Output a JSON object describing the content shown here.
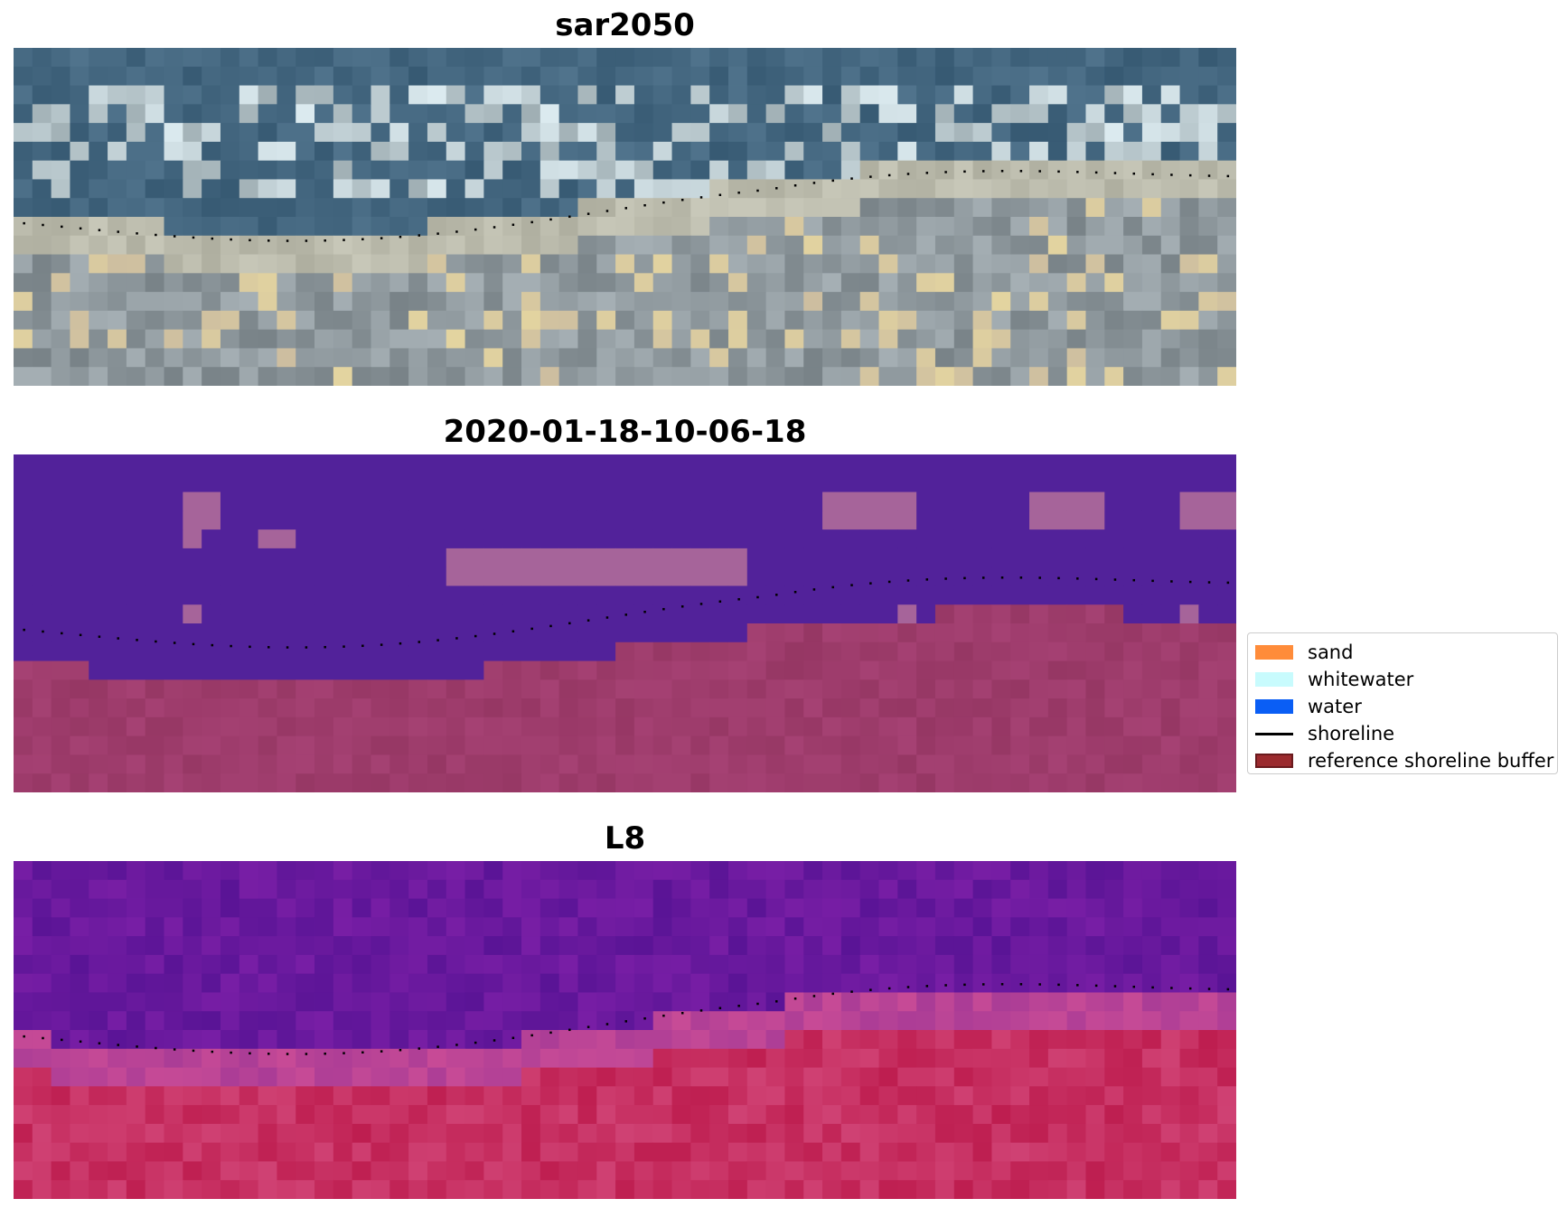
{
  "panels": [
    {
      "title": "sar2050",
      "kind": "rgb"
    },
    {
      "title": "2020-01-18-10-06-18",
      "kind": "classified"
    },
    {
      "title": "L8",
      "kind": "index"
    }
  ],
  "legend": {
    "items": [
      {
        "label": "sand",
        "color": "#ff8c3a",
        "type": "patch"
      },
      {
        "label": "whitewater",
        "color": "#c8fbfd",
        "type": "patch"
      },
      {
        "label": "water",
        "color": "#0a5ef5",
        "type": "patch"
      },
      {
        "label": "shoreline",
        "color": "#000000",
        "type": "line"
      },
      {
        "label": "reference shoreline buffer",
        "color": "#9b2a2e",
        "type": "patch"
      }
    ]
  },
  "colors": {
    "sea_dark": "#3e5e78",
    "classified_sea": "#52229a",
    "classified_foam": "#a6649a",
    "classified_land": "#9e3f6c",
    "index_sea": "#5f1898",
    "index_land": "#c42558"
  }
}
